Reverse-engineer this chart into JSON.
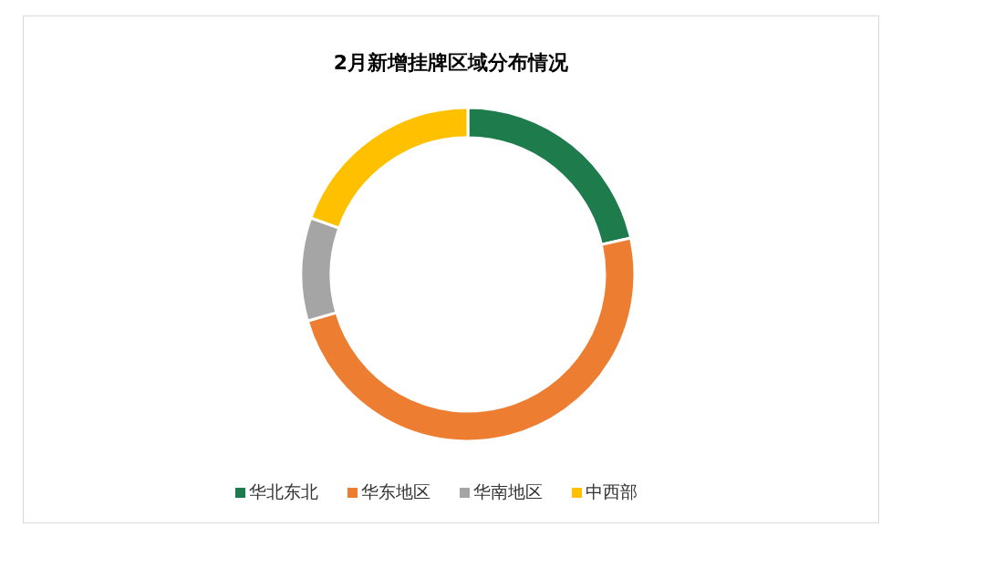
{
  "chart_data": {
    "type": "donut",
    "title": "2月新增挂牌区域分布情况",
    "categories": [
      "华北东北",
      "华东地区",
      "华南地区",
      "中西部"
    ],
    "values": [
      21.5,
      49,
      10,
      19.5
    ],
    "colors": [
      "#1e7b4c",
      "#ed7d31",
      "#a5a5a5",
      "#ffc000"
    ],
    "legend": "bottom"
  }
}
